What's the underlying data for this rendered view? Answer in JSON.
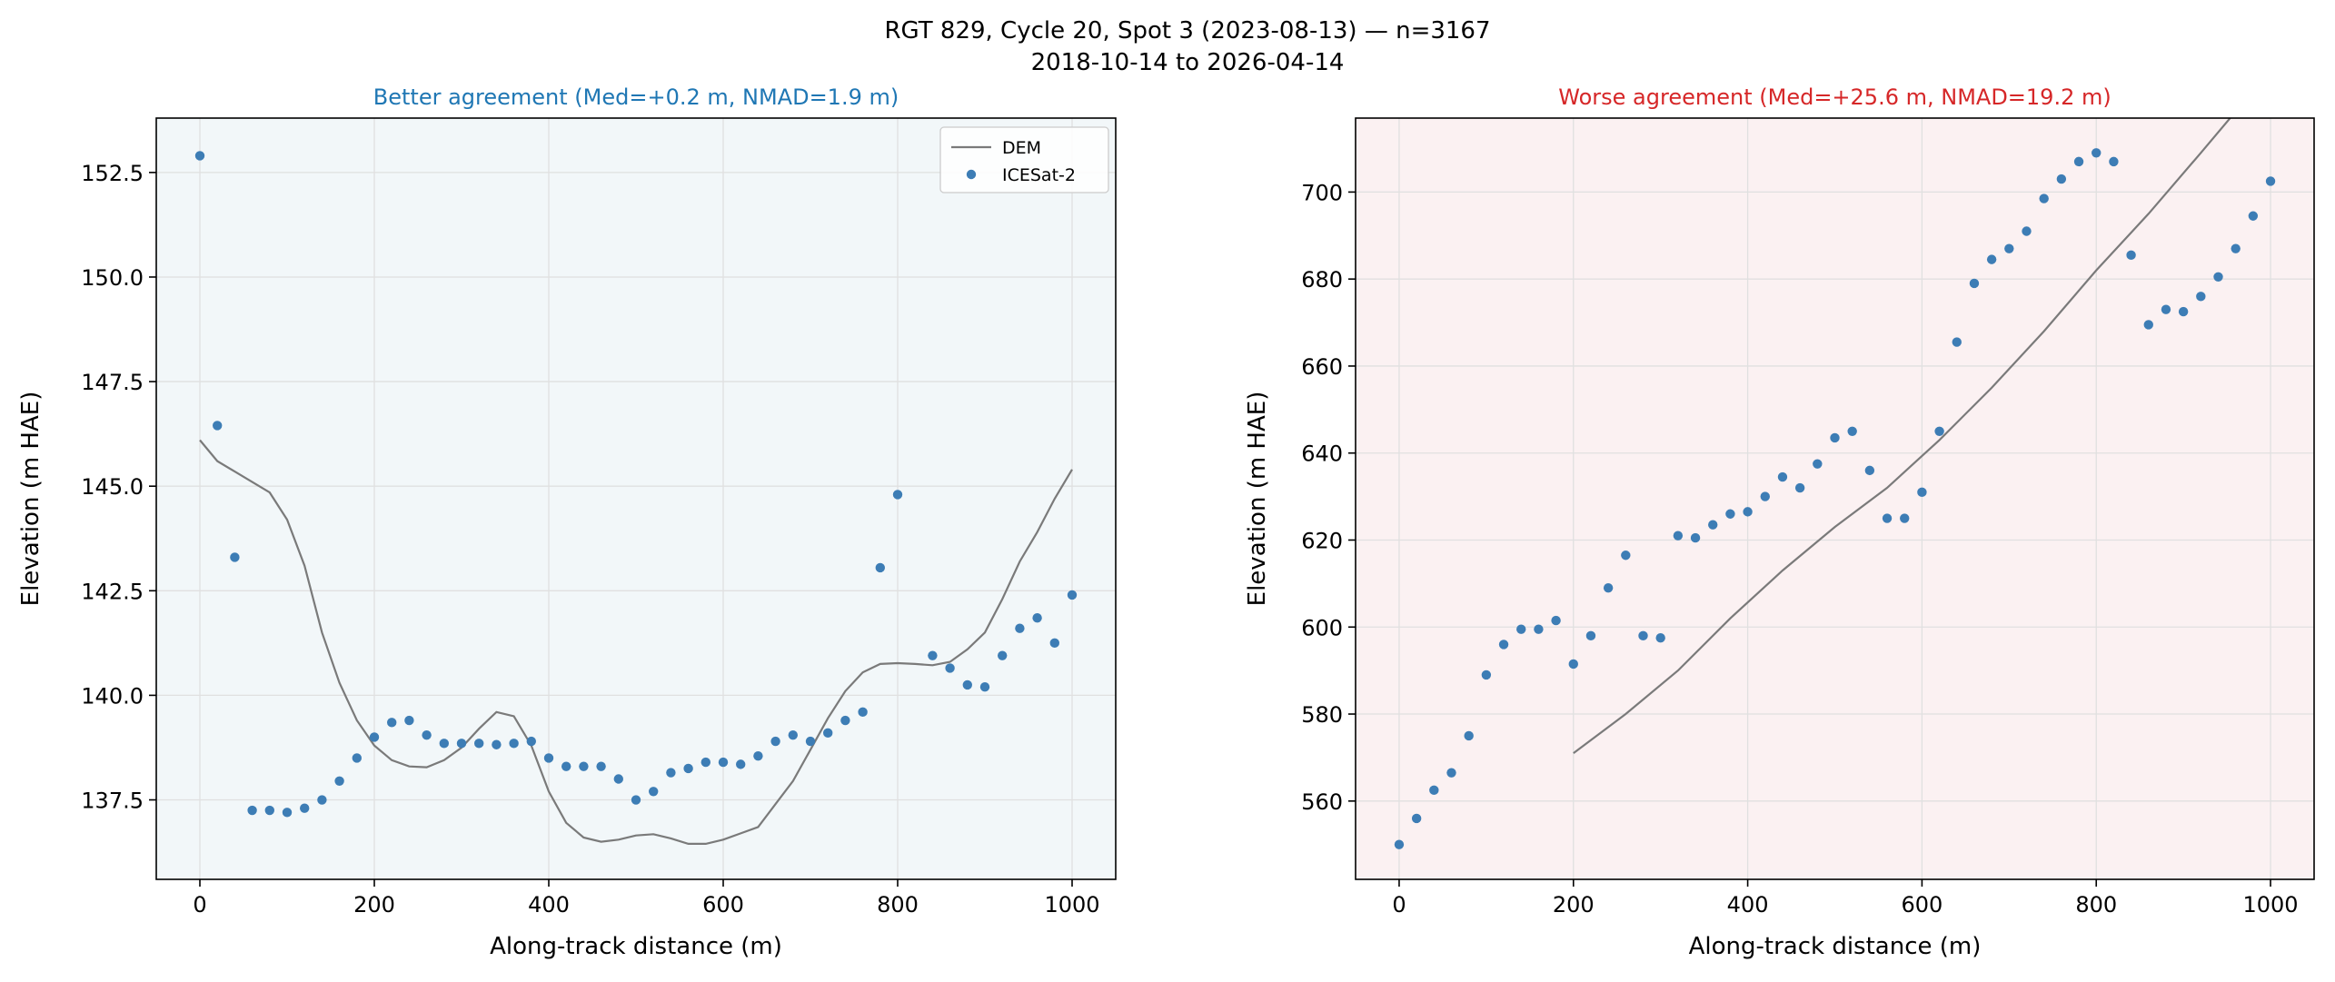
{
  "figure": {
    "suptitle_line1": "RGT 829, Cycle 20, Spot 3 (2023-08-13) — n=3167",
    "suptitle_line2": "2018-10-14 to 2026-04-14"
  },
  "colors": {
    "better_title": "#1f77b4",
    "worse_title": "#d62728",
    "better_bg": "#f2f7f9",
    "worse_bg": "#fbf1f2",
    "dem_line": "#7a7a7a",
    "icesat_points": "#3d7db5",
    "grid": "#e0e0e0"
  },
  "chart_data": [
    {
      "type": "line",
      "title": "Better agreement (Med=+0.2 m, NMAD=1.9 m)",
      "xlabel": "Along-track distance (m)",
      "ylabel": "Elevation (m HAE)",
      "xlim": [
        -50,
        1050
      ],
      "ylim": [
        135.6,
        153.8
      ],
      "xticks": [
        0,
        200,
        400,
        600,
        800,
        1000
      ],
      "xtick_labels": [
        "0",
        "200",
        "400",
        "600",
        "800",
        "1000"
      ],
      "yticks": [
        137.5,
        140.0,
        142.5,
        145.0,
        147.5,
        150.0,
        152.5
      ],
      "ytick_labels": [
        "137.5",
        "140.0",
        "142.5",
        "145.0",
        "147.5",
        "150.0",
        "152.5"
      ],
      "grid": true,
      "legend": {
        "placement": "top-right",
        "entries": [
          "DEM",
          "ICESat-2"
        ]
      },
      "series": [
        {
          "name": "DEM",
          "kind": "line",
          "x": [
            0,
            20,
            40,
            60,
            80,
            100,
            120,
            140,
            160,
            180,
            200,
            220,
            240,
            260,
            280,
            300,
            320,
            340,
            360,
            380,
            400,
            420,
            440,
            460,
            480,
            500,
            520,
            540,
            560,
            580,
            600,
            620,
            640,
            660,
            680,
            700,
            720,
            740,
            760,
            780,
            800,
            820,
            840,
            860,
            880,
            900,
            920,
            940,
            960,
            980,
            1000
          ],
          "y": [
            146.1,
            145.6,
            145.35,
            145.1,
            144.85,
            144.2,
            143.1,
            141.5,
            140.3,
            139.4,
            138.8,
            138.45,
            138.3,
            138.28,
            138.45,
            138.75,
            139.2,
            139.6,
            139.5,
            138.8,
            137.7,
            136.95,
            136.6,
            136.5,
            136.55,
            136.65,
            136.68,
            136.58,
            136.45,
            136.45,
            136.55,
            136.7,
            136.85,
            137.4,
            137.95,
            138.7,
            139.45,
            140.1,
            140.55,
            140.75,
            140.77,
            140.75,
            140.72,
            140.8,
            141.1,
            141.5,
            142.3,
            143.2,
            143.9,
            144.7,
            145.4
          ]
        },
        {
          "name": "ICESat-2",
          "kind": "scatter",
          "x": [
            0,
            20,
            40,
            60,
            80,
            100,
            120,
            140,
            160,
            180,
            200,
            220,
            240,
            260,
            280,
            300,
            320,
            340,
            360,
            380,
            400,
            420,
            440,
            460,
            480,
            500,
            520,
            540,
            560,
            580,
            600,
            620,
            640,
            660,
            680,
            700,
            720,
            740,
            760,
            780,
            800,
            840,
            860,
            880,
            900,
            920,
            940,
            960,
            980,
            1000
          ],
          "y": [
            152.9,
            146.45,
            143.3,
            137.25,
            137.25,
            137.2,
            137.3,
            137.5,
            137.95,
            138.5,
            139.0,
            139.35,
            139.4,
            139.05,
            138.85,
            138.85,
            138.85,
            138.82,
            138.85,
            138.9,
            138.5,
            138.3,
            138.3,
            138.3,
            138.0,
            137.5,
            137.7,
            138.15,
            138.25,
            138.4,
            138.4,
            138.35,
            138.55,
            138.9,
            139.05,
            138.9,
            139.1,
            139.4,
            139.6,
            143.05,
            144.8,
            140.95,
            140.65,
            140.25,
            140.2,
            140.95,
            141.6,
            141.85,
            141.25,
            142.4
          ]
        }
      ]
    },
    {
      "type": "line",
      "title": "Worse agreement (Med=+25.6 m, NMAD=19.2 m)",
      "xlabel": "Along-track distance (m)",
      "ylabel": "Elevation (m HAE)",
      "xlim": [
        -50,
        1050
      ],
      "ylim": [
        542,
        717
      ],
      "xticks": [
        0,
        200,
        400,
        600,
        800,
        1000
      ],
      "xtick_labels": [
        "0",
        "200",
        "400",
        "600",
        "800",
        "1000"
      ],
      "yticks": [
        560,
        580,
        600,
        620,
        640,
        660,
        680,
        700
      ],
      "ytick_labels": [
        "560",
        "580",
        "600",
        "620",
        "640",
        "660",
        "680",
        "700"
      ],
      "grid": true,
      "series": [
        {
          "name": "DEM",
          "kind": "line",
          "x": [
            200,
            260,
            320,
            380,
            440,
            500,
            560,
            620,
            680,
            740,
            800,
            860,
            920,
            1000
          ],
          "y": [
            571,
            580,
            590,
            602,
            613,
            623,
            632,
            643,
            655,
            668,
            682,
            695,
            709,
            728
          ]
        },
        {
          "name": "ICESat-2",
          "kind": "scatter",
          "x": [
            0,
            20,
            40,
            60,
            80,
            100,
            120,
            140,
            160,
            180,
            200,
            220,
            240,
            260,
            280,
            300,
            320,
            340,
            360,
            380,
            400,
            420,
            440,
            460,
            480,
            500,
            520,
            540,
            560,
            580,
            600,
            620,
            640,
            660,
            680,
            700,
            720,
            740,
            760,
            780,
            800,
            820,
            840,
            860,
            880,
            900,
            920,
            940,
            960,
            980,
            1000
          ],
          "y": [
            550,
            556,
            562.5,
            566.5,
            575,
            589,
            596,
            599.5,
            599.5,
            601.5,
            591.5,
            598,
            609,
            616.5,
            598,
            597.5,
            621,
            620.5,
            623.5,
            626,
            626.5,
            630,
            634.5,
            632,
            637.5,
            643.5,
            645,
            636,
            625,
            625,
            631,
            645,
            665.5,
            679,
            684.5,
            687,
            691,
            698.5,
            703,
            707,
            709,
            707,
            685.5,
            669.5,
            673,
            672.5,
            676,
            680.5,
            687,
            694.5,
            702.5
          ]
        }
      ]
    }
  ]
}
